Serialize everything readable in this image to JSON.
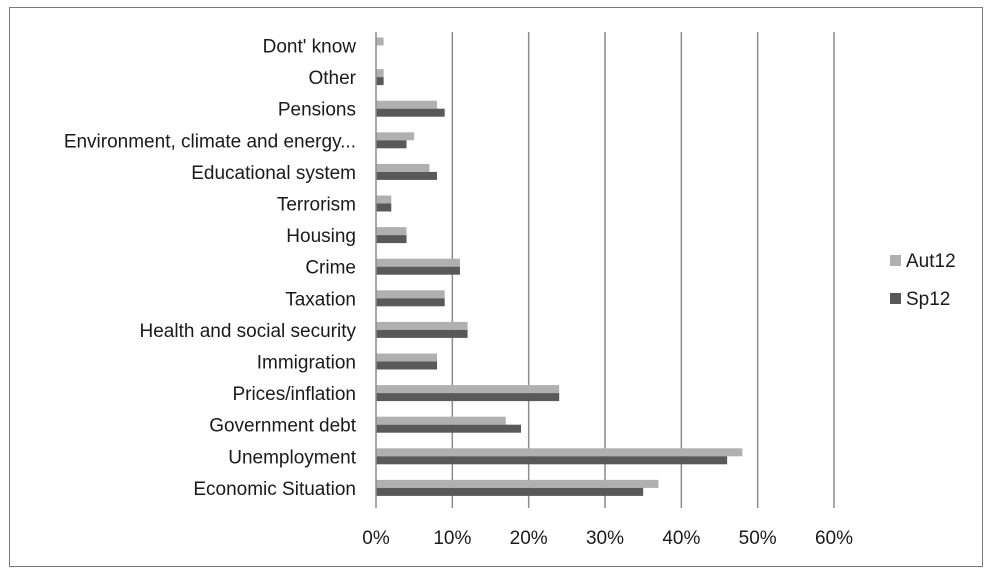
{
  "chart_data": {
    "type": "bar",
    "orientation": "horizontal",
    "categories": [
      "Dont' know",
      "Other",
      "Pensions",
      "Environment, climate and energy...",
      "Educational system",
      "Terrorism",
      "Housing",
      "Crime",
      "Taxation",
      "Health and social security",
      "Immigration",
      "Prices/inflation",
      "Government debt",
      "Unemployment",
      "Economic Situation"
    ],
    "series": [
      {
        "name": "Aut12",
        "color": "#b0b0b0",
        "values": [
          1,
          1,
          8,
          5,
          7,
          2,
          4,
          11,
          9,
          12,
          8,
          24,
          17,
          48,
          37
        ]
      },
      {
        "name": "Sp12",
        "color": "#595959",
        "values": [
          0,
          1,
          9,
          4,
          8,
          2,
          4,
          11,
          9,
          12,
          8,
          24,
          19,
          46,
          35
        ]
      }
    ],
    "xlim": [
      0,
      60
    ],
    "xticks": [
      "0%",
      "10%",
      "20%",
      "30%",
      "40%",
      "50%",
      "60%"
    ],
    "grid": "vertical",
    "legend_position": "right",
    "gridline_color": "#8c8c8c"
  }
}
